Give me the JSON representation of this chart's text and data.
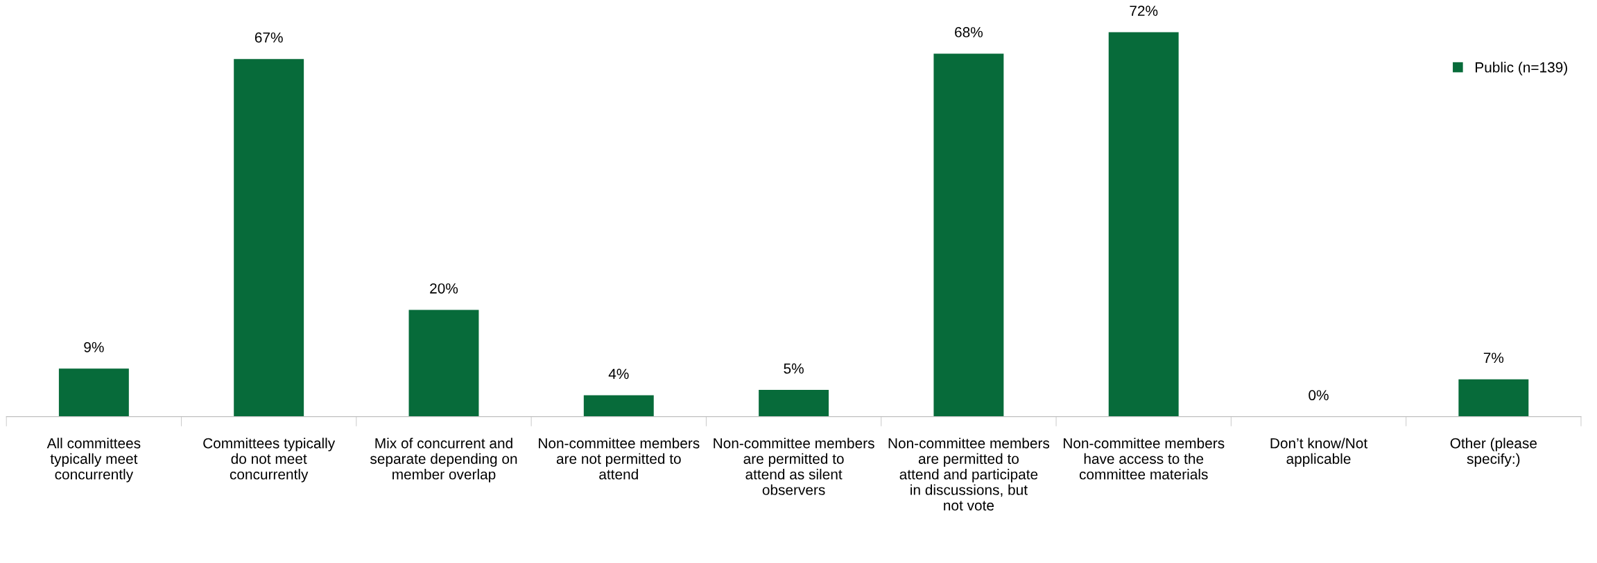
{
  "chart_data": {
    "type": "bar",
    "categories": [
      "All committees typically meet concurrently",
      "Committees typically do not meet concurrently",
      "Mix of concurrent and separate depending on member overlap",
      "Non-committee members are not permitted to attend",
      "Non-committee members are permitted to attend as silent observers",
      "Non-committee members are permitted to attend and participate in discussions, but not vote",
      "Non-committee members have access to the committee materials",
      "Don’t know/Not applicable",
      "Other (please specify:)"
    ],
    "series": [
      {
        "name": "Public (n=139)",
        "color": "#076b3a",
        "values": [
          9,
          67,
          20,
          4,
          5,
          68,
          72,
          0,
          7
        ],
        "value_labels": [
          "9%",
          "67%",
          "20%",
          "4%",
          "5%",
          "68%",
          "72%",
          "0%",
          "7%"
        ]
      }
    ],
    "legend": "top right",
    "grid": false
  }
}
